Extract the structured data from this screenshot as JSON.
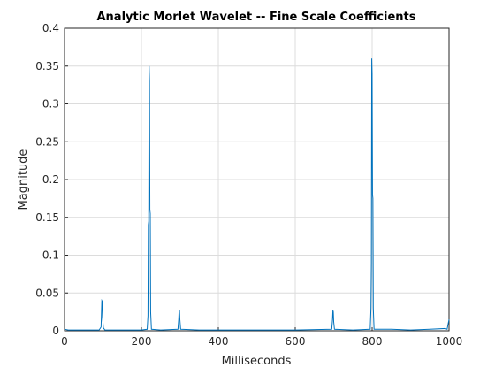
{
  "chart_data": {
    "type": "line",
    "title": "Analytic Morlet Wavelet -- Fine Scale Coefficients",
    "xlabel": "Milliseconds",
    "ylabel": "Magnitude",
    "x": [
      0,
      10,
      30,
      60,
      90,
      95,
      97,
      98,
      99,
      101,
      105,
      150,
      200,
      215,
      217,
      218,
      219,
      220,
      221,
      222,
      223,
      224,
      226,
      250,
      295,
      297,
      298,
      299,
      300,
      302,
      350,
      400,
      500,
      600,
      695,
      697,
      698,
      699,
      700,
      702,
      750,
      795,
      797,
      798,
      799,
      800,
      801,
      802,
      803,
      805,
      850,
      900,
      950,
      990,
      995,
      998,
      1000
    ],
    "series": [
      {
        "name": "Magnitude",
        "color": "#0072bd",
        "values": [
          0.002,
          0.001,
          0.001,
          0.001,
          0.001,
          0.005,
          0.04,
          0.039,
          0.018,
          0.004,
          0.001,
          0.001,
          0.001,
          0.002,
          0.02,
          0.14,
          0.145,
          0.35,
          0.33,
          0.16,
          0.155,
          0.025,
          0.002,
          0.001,
          0.002,
          0.015,
          0.027,
          0.027,
          0.015,
          0.002,
          0.001,
          0.001,
          0.001,
          0.001,
          0.002,
          0.015,
          0.027,
          0.025,
          0.012,
          0.002,
          0.001,
          0.002,
          0.03,
          0.09,
          0.36,
          0.34,
          0.18,
          0.175,
          0.03,
          0.002,
          0.002,
          0.001,
          0.002,
          0.003,
          0.002,
          0.01,
          0.015
        ]
      }
    ],
    "xlim": [
      0,
      1000
    ],
    "xticks": [
      0,
      200,
      400,
      600,
      800,
      1000
    ],
    "ylim": [
      0,
      0.4
    ],
    "yticks": [
      0,
      0.05,
      0.1,
      0.15,
      0.2,
      0.25,
      0.3,
      0.35,
      0.4
    ],
    "grid": true
  }
}
